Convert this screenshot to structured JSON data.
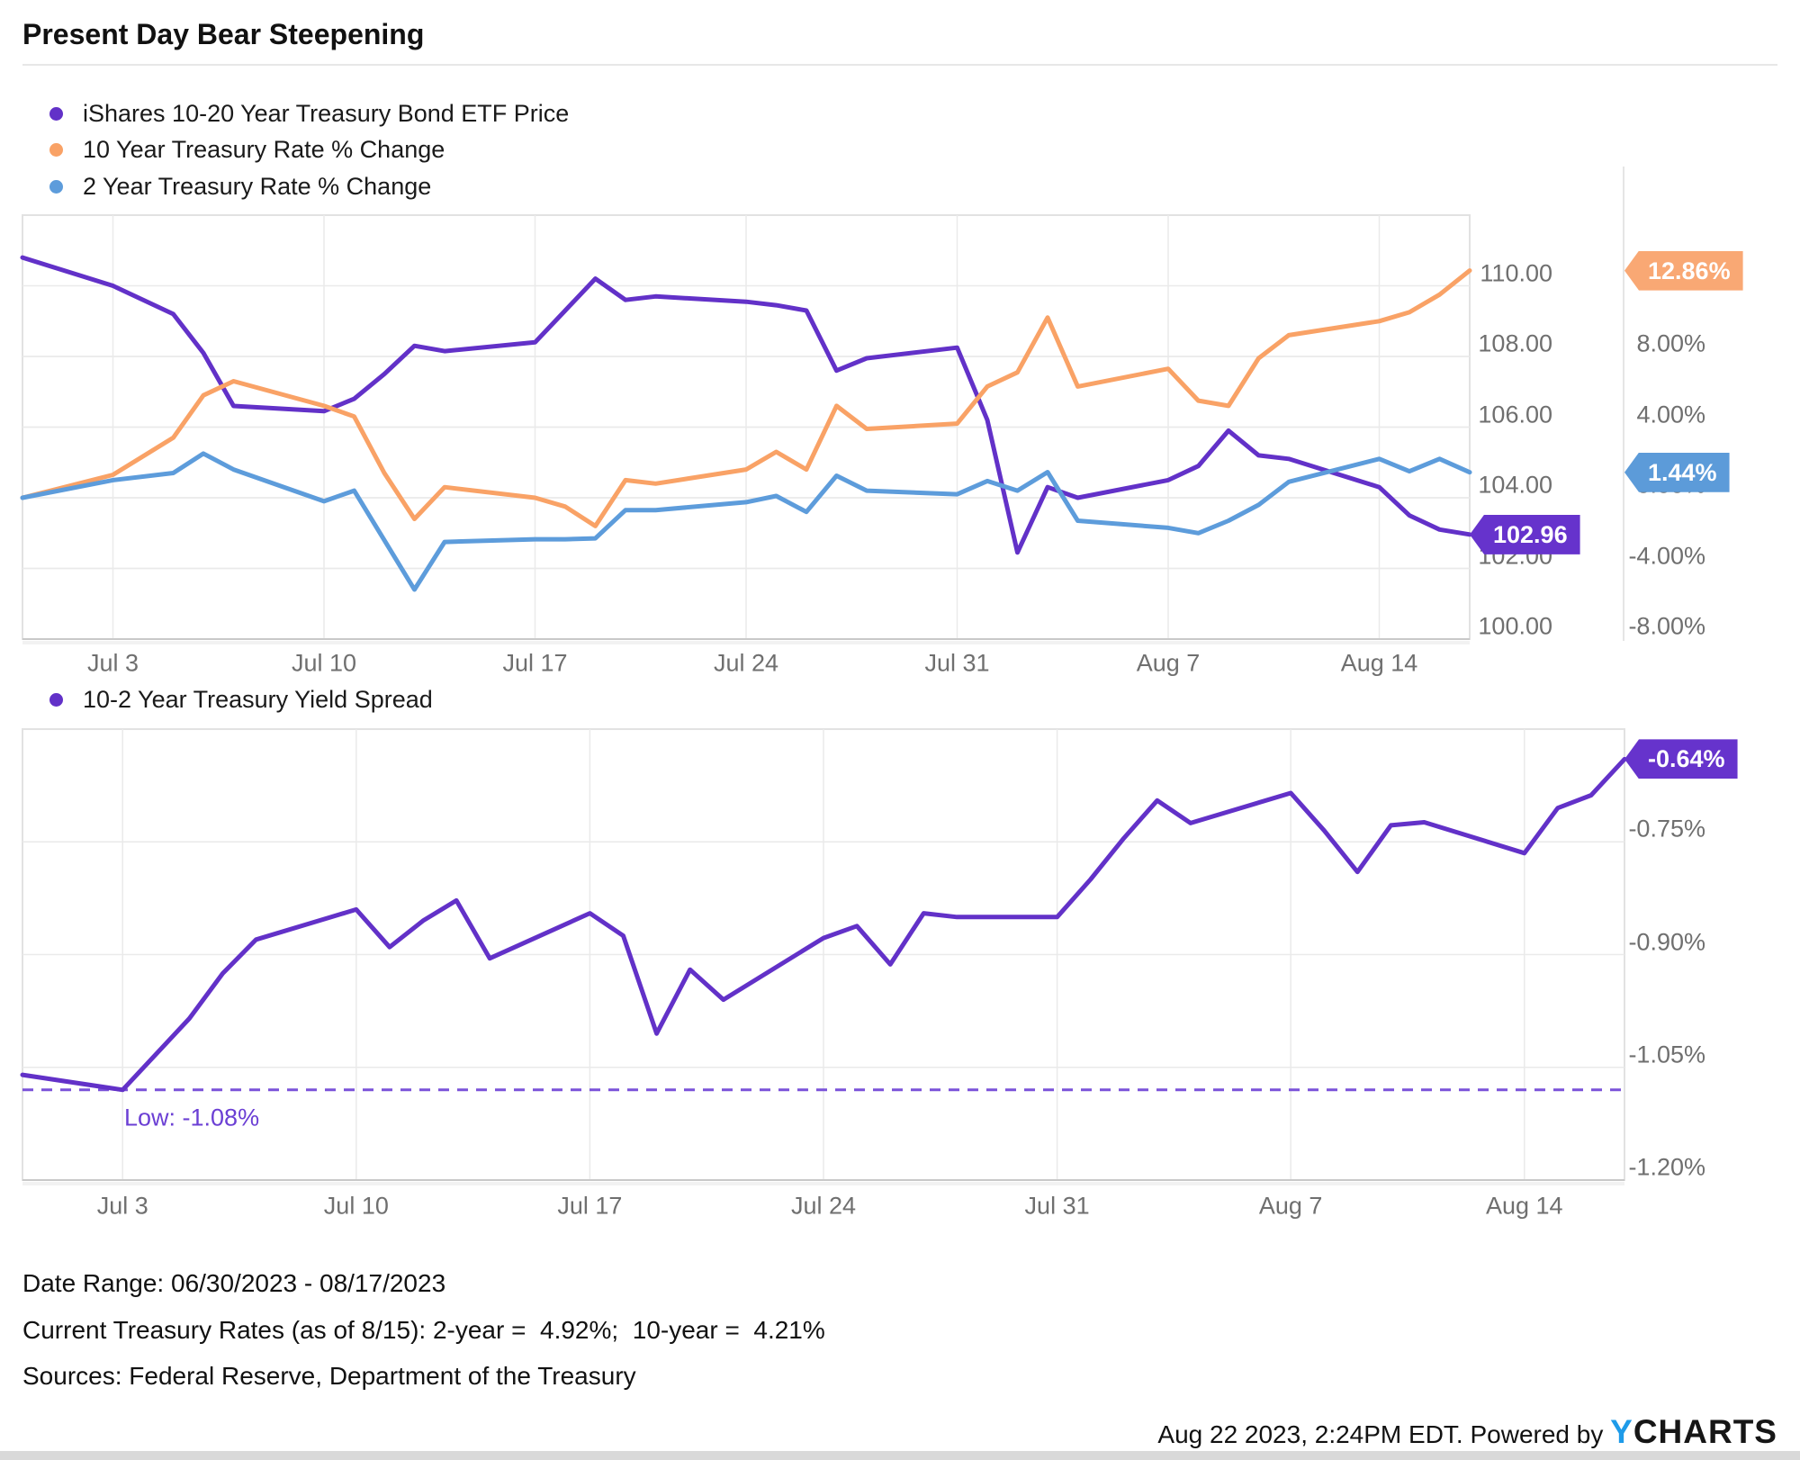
{
  "title": "Present Day Bear Steepening",
  "colors": {
    "purple": "#6231C8",
    "purple_tag": "#6633CC",
    "orange": "#F9A266",
    "orange_tag": "#F9A874",
    "blue": "#5D9CDB",
    "blue_tag": "#5C9BD9",
    "dashed_low": "#7A52D9",
    "low_text": "#6B3FD4",
    "grid": "#EAEAEA",
    "box_border": "#E2E2E2",
    "axis_line": "#C9C9C9",
    "axis_text": "#6F6F6F",
    "brand_blue": "#1E9BE9",
    "brand_dark": "#161616"
  },
  "footer": {
    "date_range": "Date Range: 06/30/2023 - 08/17/2023",
    "current_rates": "Current Treasury Rates (as of 8/15): 2-year =  4.92%;  10-year =  4.21%",
    "sources": "Sources: Federal Reserve, Department of the Treasury",
    "timestamp": "Aug 22 2023, 2:24PM EDT. Powered by ",
    "brand_y": "Y",
    "brand_charts": "CHARTS"
  },
  "chart_data": [
    {
      "type": "line",
      "x_range": [
        "2023-06-30",
        "2023-08-17"
      ],
      "x_ticks": [
        {
          "date": "2023-07-03",
          "label": "Jul 3"
        },
        {
          "date": "2023-07-10",
          "label": "Jul 10"
        },
        {
          "date": "2023-07-17",
          "label": "Jul 17"
        },
        {
          "date": "2023-07-24",
          "label": "Jul 24"
        },
        {
          "date": "2023-07-31",
          "label": "Jul 31"
        },
        {
          "date": "2023-08-07",
          "label": "Aug 7"
        },
        {
          "date": "2023-08-14",
          "label": "Aug 14"
        }
      ],
      "dates": [
        "2023-06-30",
        "2023-07-03",
        "2023-07-05",
        "2023-07-06",
        "2023-07-07",
        "2023-07-10",
        "2023-07-11",
        "2023-07-12",
        "2023-07-13",
        "2023-07-14",
        "2023-07-17",
        "2023-07-18",
        "2023-07-19",
        "2023-07-20",
        "2023-07-21",
        "2023-07-24",
        "2023-07-25",
        "2023-07-26",
        "2023-07-27",
        "2023-07-28",
        "2023-07-31",
        "2023-08-01",
        "2023-08-02",
        "2023-08-03",
        "2023-08-04",
        "2023-08-07",
        "2023-08-08",
        "2023-08-09",
        "2023-08-10",
        "2023-08-11",
        "2023-08-14",
        "2023-08-15",
        "2023-08-16",
        "2023-08-17"
      ],
      "price_axis": {
        "range": [
          100,
          112
        ],
        "ticks": [
          {
            "v": 110,
            "label": "110.00"
          },
          {
            "v": 108,
            "label": "108.00"
          },
          {
            "v": 106,
            "label": "106.00"
          },
          {
            "v": 104,
            "label": "104.00"
          },
          {
            "v": 102,
            "label": "102.00"
          },
          {
            "v": 100,
            "label": "100.00"
          }
        ]
      },
      "percent_axis": {
        "range": [
          -8,
          16
        ],
        "ticks": [
          {
            "v": 8,
            "label": "8.00%"
          },
          {
            "v": 4,
            "label": "4.00%"
          },
          {
            "v": 0,
            "label": "0.00%"
          },
          {
            "v": -4,
            "label": "-4.00%"
          },
          {
            "v": -8,
            "label": "-8.00%"
          }
        ]
      },
      "series": [
        {
          "name": "iShares 10-20 Year Treasury Bond ETF Price",
          "axis": "price",
          "color_key": "purple",
          "tag_color_key": "purple_tag",
          "end_tag": "102.96",
          "values": [
            110.8,
            110.0,
            109.2,
            108.1,
            106.6,
            106.45,
            106.8,
            107.5,
            108.3,
            108.15,
            108.4,
            109.3,
            110.2,
            109.6,
            109.7,
            109.55,
            109.45,
            109.3,
            107.6,
            107.95,
            108.25,
            106.2,
            102.45,
            104.3,
            104.0,
            104.5,
            104.9,
            105.9,
            105.2,
            105.1,
            104.3,
            103.5,
            103.1,
            102.96
          ]
        },
        {
          "name": "10 Year Treasury Rate % Change",
          "axis": "percent",
          "color_key": "orange",
          "tag_color_key": "orange_tag",
          "end_tag": "12.86%",
          "values": [
            0.0,
            1.3,
            3.4,
            5.8,
            6.6,
            5.2,
            4.6,
            1.4,
            -1.2,
            0.6,
            0.0,
            -0.5,
            -1.6,
            1.0,
            0.8,
            1.6,
            2.6,
            1.6,
            5.2,
            3.9,
            4.2,
            6.3,
            7.1,
            10.2,
            6.3,
            7.3,
            5.5,
            5.2,
            7.9,
            9.2,
            10.0,
            10.5,
            11.5,
            12.86
          ]
        },
        {
          "name": "2 Year Treasury Rate % Change",
          "axis": "percent",
          "color_key": "blue",
          "tag_color_key": "blue_tag",
          "end_tag": "1.44%",
          "values": [
            0.0,
            1.0,
            1.4,
            2.5,
            1.6,
            -0.2,
            0.4,
            -2.4,
            -5.2,
            -2.5,
            -2.35,
            -2.35,
            -2.3,
            -0.7,
            -0.7,
            -0.25,
            0.1,
            -0.8,
            1.25,
            0.4,
            0.2,
            0.95,
            0.4,
            1.45,
            -1.3,
            -1.7,
            -2.0,
            -1.3,
            -0.4,
            0.9,
            2.2,
            1.5,
            2.2,
            1.44
          ]
        }
      ]
    },
    {
      "type": "line",
      "x_range": [
        "2023-06-30",
        "2023-08-17"
      ],
      "x_ticks": [
        {
          "date": "2023-07-03",
          "label": "Jul 3"
        },
        {
          "date": "2023-07-10",
          "label": "Jul 10"
        },
        {
          "date": "2023-07-17",
          "label": "Jul 17"
        },
        {
          "date": "2023-07-24",
          "label": "Jul 24"
        },
        {
          "date": "2023-07-31",
          "label": "Jul 31"
        },
        {
          "date": "2023-08-07",
          "label": "Aug 7"
        },
        {
          "date": "2023-08-14",
          "label": "Aug 14"
        }
      ],
      "dates": [
        "2023-06-30",
        "2023-07-03",
        "2023-07-05",
        "2023-07-06",
        "2023-07-07",
        "2023-07-10",
        "2023-07-11",
        "2023-07-12",
        "2023-07-13",
        "2023-07-14",
        "2023-07-17",
        "2023-07-18",
        "2023-07-19",
        "2023-07-20",
        "2023-07-21",
        "2023-07-24",
        "2023-07-25",
        "2023-07-26",
        "2023-07-27",
        "2023-07-28",
        "2023-07-31",
        "2023-08-01",
        "2023-08-02",
        "2023-08-03",
        "2023-08-04",
        "2023-08-07",
        "2023-08-08",
        "2023-08-09",
        "2023-08-10",
        "2023-08-11",
        "2023-08-14",
        "2023-08-15",
        "2023-08-16",
        "2023-08-17"
      ],
      "spread_axis": {
        "range": [
          -1.2,
          -0.6
        ],
        "ticks": [
          {
            "v": -0.75,
            "label": "-0.75%"
          },
          {
            "v": -0.9,
            "label": "-0.90%"
          },
          {
            "v": -1.05,
            "label": "-1.05%"
          },
          {
            "v": -1.2,
            "label": "-1.20%"
          }
        ]
      },
      "low_line": {
        "value": -1.08,
        "label": "Low: -1.08%"
      },
      "series": [
        {
          "name": "10-2 Year Treasury Yield Spread",
          "axis": "spread",
          "color_key": "purple",
          "tag_color_key": "purple_tag",
          "end_tag": "-0.64%",
          "values": [
            -1.06,
            -1.08,
            -0.985,
            -0.925,
            -0.88,
            -0.84,
            -0.89,
            -0.855,
            -0.828,
            -0.905,
            -0.845,
            -0.875,
            -1.005,
            -0.92,
            -0.96,
            -0.878,
            -0.862,
            -0.913,
            -0.845,
            -0.85,
            -0.85,
            -0.8,
            -0.745,
            -0.695,
            -0.725,
            -0.685,
            -0.735,
            -0.79,
            -0.728,
            -0.724,
            -0.765,
            -0.705,
            -0.688,
            -0.64
          ]
        }
      ]
    }
  ]
}
